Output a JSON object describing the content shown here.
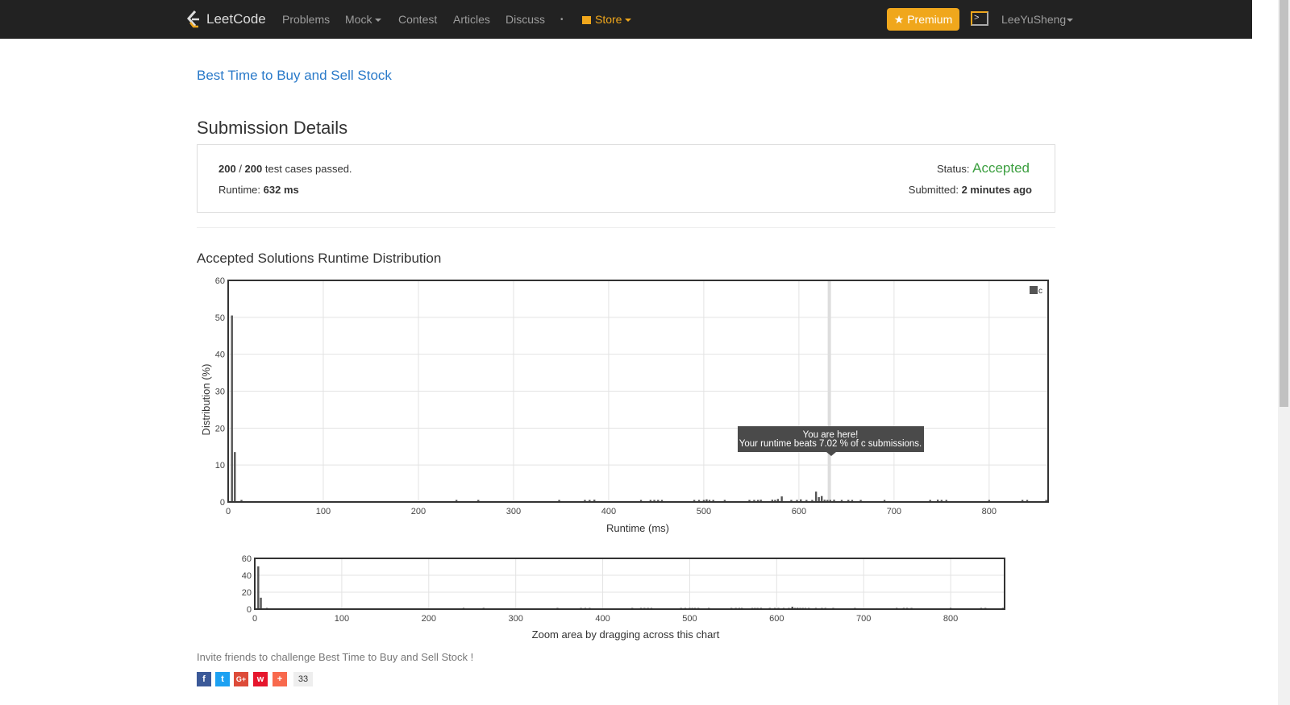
{
  "nav": {
    "brand": "LeetCode",
    "items": [
      "Problems",
      "Mock",
      "Contest",
      "Articles",
      "Discuss"
    ],
    "dot": "•",
    "store": "Store",
    "premium": "Premium",
    "user": "LeeYuSheng",
    "accent": "#f0a71c"
  },
  "problem_link": "Best Time to Buy and Sell Stock",
  "page_title": "Submission Details",
  "details": {
    "passed": "200",
    "total": "200",
    "passed_suffix": "test cases passed.",
    "runtime_label": "Runtime:",
    "runtime": "632 ms",
    "status_label": "Status:",
    "status": "Accepted",
    "status_color": "#3c9f40",
    "submitted_label": "Submitted:",
    "submitted": "2 minutes ago"
  },
  "chart_title": "Accepted Solutions Runtime Distribution",
  "chart_data": {
    "type": "bar",
    "xlabel": "Runtime (ms)",
    "ylabel": "Distribution (%)",
    "xlim": [
      0,
      862
    ],
    "ylim": [
      0,
      60
    ],
    "xticks": [
      0,
      100,
      200,
      300,
      400,
      500,
      600,
      700,
      800
    ],
    "yticks": [
      0,
      10,
      20,
      30,
      40,
      50,
      60
    ],
    "grid": true,
    "legend": "top-right",
    "legend_entries": [
      "c"
    ],
    "points": [
      [
        4,
        50.5
      ],
      [
        7,
        13.5
      ],
      [
        14,
        0.5
      ],
      [
        240,
        0.3
      ],
      [
        263,
        0.3
      ],
      [
        348,
        0.3
      ],
      [
        375,
        0.3
      ],
      [
        380,
        0.3
      ],
      [
        385,
        0.6
      ],
      [
        434,
        0.5
      ],
      [
        444,
        0.3
      ],
      [
        448,
        0.3
      ],
      [
        452,
        0.3
      ],
      [
        456,
        0.3
      ],
      [
        490,
        0.5
      ],
      [
        495,
        0.4
      ],
      [
        500,
        0.5
      ],
      [
        503,
        0.7
      ],
      [
        506,
        0.4
      ],
      [
        510,
        0.4
      ],
      [
        522,
        0.3
      ],
      [
        548,
        0.4
      ],
      [
        553,
        0.5
      ],
      [
        557,
        0.3
      ],
      [
        560,
        0.6
      ],
      [
        572,
        0.6
      ],
      [
        575,
        0.4
      ],
      [
        578,
        0.8
      ],
      [
        582,
        1.5
      ],
      [
        592,
        0.3
      ],
      [
        598,
        0.5
      ],
      [
        602,
        0.7
      ],
      [
        608,
        0.4
      ],
      [
        614,
        0.5
      ],
      [
        618,
        2.8
      ],
      [
        621,
        1.3
      ],
      [
        624,
        1.6
      ],
      [
        627,
        0.6
      ],
      [
        630,
        0.5
      ],
      [
        633,
        0.4
      ],
      [
        637,
        0.6
      ],
      [
        645,
        0.3
      ],
      [
        652,
        0.3
      ],
      [
        656,
        0.3
      ],
      [
        665,
        0.3
      ],
      [
        690,
        0.3
      ],
      [
        738,
        0.3
      ],
      [
        746,
        0.6
      ],
      [
        750,
        0.5
      ],
      [
        755,
        0.3
      ],
      [
        800,
        0.3
      ],
      [
        835,
        0.3
      ],
      [
        840,
        0.3
      ],
      [
        860,
        0.3
      ]
    ],
    "marker": {
      "x": 632
    },
    "tooltip": {
      "line1": "You are here!",
      "line2": "Your runtime beats 7.02 % of c submissions."
    },
    "navigator": {
      "yticks": [
        0,
        20,
        40,
        60
      ],
      "caption": "Zoom area by dragging across this chart"
    }
  },
  "invite": "Invite friends to challenge Best Time to Buy and Sell Stock !",
  "share": {
    "count": "33",
    "icons": [
      "facebook-icon",
      "twitter-icon",
      "google-plus-icon",
      "weibo-icon",
      "more-icon"
    ]
  }
}
